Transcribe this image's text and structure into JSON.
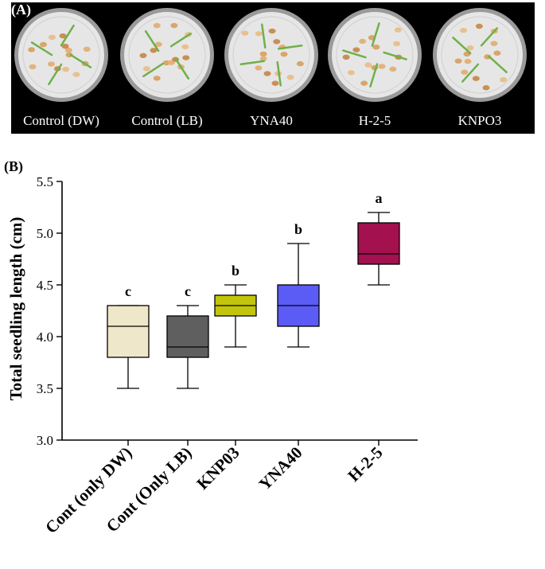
{
  "panel_a": {
    "label": "(A)",
    "dishes": [
      {
        "label": "Control (DW)"
      },
      {
        "label": "Control (LB)"
      },
      {
        "label": "YNA40"
      },
      {
        "label": "H-2-5"
      },
      {
        "label": "KNPO3"
      }
    ]
  },
  "chart_data": {
    "type": "box",
    "panel_label": "(B)",
    "ylabel": "Total seedling length (cm)",
    "xlabel": "",
    "ylim": [
      3.0,
      5.5
    ],
    "yticks": [
      "3.0",
      "3.5",
      "4.0",
      "4.5",
      "5.0",
      "5.5"
    ],
    "categories": [
      "Cont (only DW)",
      "Cont (Only LB)",
      "KNP03",
      "YNA40",
      "H-2-5"
    ],
    "boxes": [
      {
        "category": "Cont (only DW)",
        "min": 3.5,
        "q1": 3.8,
        "median": 4.1,
        "q3": 4.3,
        "max": 4.3,
        "group": "c",
        "color": "#efe7c9"
      },
      {
        "category": "Cont (Only LB)",
        "min": 3.5,
        "q1": 3.8,
        "median": 3.9,
        "q3": 4.2,
        "max": 4.3,
        "group": "c",
        "color": "#5f5f5f"
      },
      {
        "category": "KNP03",
        "min": 3.9,
        "q1": 4.2,
        "median": 4.3,
        "q3": 4.4,
        "max": 4.5,
        "group": "b",
        "color": "#c3c50c"
      },
      {
        "category": "YNA40",
        "min": 3.9,
        "q1": 4.1,
        "median": 4.3,
        "q3": 4.5,
        "max": 4.9,
        "group": "b",
        "color": "#5b5cf5"
      },
      {
        "category": "H-2-5",
        "min": 4.5,
        "q1": 4.7,
        "median": 4.8,
        "q3": 5.1,
        "max": 5.2,
        "group": "a",
        "color": "#a3114f"
      }
    ]
  }
}
